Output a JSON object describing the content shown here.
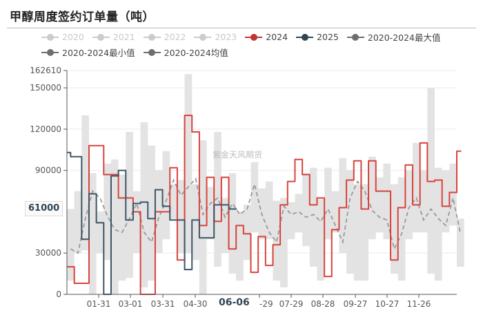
{
  "title": "甲醇周度签约订单量（吨）",
  "watermark": "紫金天风期货",
  "legend": {
    "row1": [
      {
        "label": "2020",
        "color": "#cccccc",
        "active": false
      },
      {
        "label": "2021",
        "color": "#cccccc",
        "active": false
      },
      {
        "label": "2022",
        "color": "#cccccc",
        "active": false
      },
      {
        "label": "2023",
        "color": "#cccccc",
        "active": false
      },
      {
        "label": "2024",
        "color": "#c23531",
        "active": true
      },
      {
        "label": "2025",
        "color": "#2f4554",
        "active": true
      },
      {
        "label": "2020-2024最大值",
        "color": "#6e6e6e",
        "active": true
      }
    ],
    "row2": [
      {
        "label": "2020-2024最小值",
        "color": "#6e6e6e",
        "active": true
      },
      {
        "label": "2020-2024均值",
        "color": "#6e6e6e",
        "active": true
      }
    ]
  },
  "axis_pointer": {
    "y_value": "61000",
    "x_value": "06-06"
  },
  "colors": {
    "y2024": "#d9423c",
    "y2025": "#3d5566",
    "band": "#e3e3e3",
    "avg": "#999999",
    "grid": "#ebebeb",
    "axis": "#555555"
  },
  "chart_data": {
    "type": "line",
    "title": "甲醇周度签约订单量（吨）",
    "xlabel": "",
    "ylabel": "吨",
    "ylim": [
      0,
      162610
    ],
    "y_ticks": [
      0,
      30000,
      90000,
      120000,
      150000,
      162610
    ],
    "y_pointer_label": 61000,
    "x_tick_labels": [
      "01-31",
      "03-01",
      "03-31",
      "04-30",
      "06-29",
      "07-29",
      "08-28",
      "09-27",
      "10-27",
      "11-26"
    ],
    "x_pointer_label": "06-06",
    "grid": true,
    "legend_position": "top",
    "x_range_weeks": [
      0,
      53
    ],
    "series": [
      {
        "name": "2024",
        "type": "step",
        "x": [
          0,
          1,
          3,
          5,
          7,
          9,
          10,
          12,
          14,
          15,
          16,
          17,
          18,
          19,
          20,
          21,
          22,
          23,
          24,
          25,
          26,
          27,
          28,
          29,
          30,
          31,
          32,
          33,
          34,
          35,
          36,
          37,
          38,
          39,
          40,
          41,
          42,
          43,
          44,
          45,
          46,
          47,
          48,
          49,
          50,
          51,
          52,
          53
        ],
        "values": [
          20000,
          8000,
          108000,
          87000,
          70000,
          60000,
          0,
          60000,
          92000,
          25000,
          130000,
          118000,
          50000,
          85000,
          53000,
          85000,
          33000,
          50000,
          44000,
          16000,
          42000,
          21000,
          36000,
          65000,
          82000,
          98000,
          87000,
          65000,
          70000,
          13000,
          47000,
          63000,
          83000,
          97000,
          62000,
          97000,
          75000,
          75000,
          25000,
          63000,
          94000,
          65000,
          110000,
          82000,
          83000,
          64000,
          74000,
          104000
        ]
      },
      {
        "name": "2025",
        "type": "step",
        "x": [
          0,
          0.5,
          1.5,
          2,
          3,
          4,
          5,
          5.5,
          6,
          7,
          8,
          9,
          10,
          11,
          12,
          13,
          14,
          15,
          16,
          17,
          18,
          19,
          20,
          21,
          22,
          22.5
        ],
        "values": [
          103000,
          100000,
          100000,
          40000,
          73000,
          52000,
          0,
          0,
          86000,
          90000,
          54000,
          66000,
          67000,
          55000,
          76000,
          64000,
          54000,
          54000,
          18000,
          54000,
          41000,
          41000,
          65000,
          65000,
          62000,
          62000
        ]
      },
      {
        "name": "2020-2024均值",
        "type": "line",
        "style": "dashed",
        "x": [
          0,
          1,
          2,
          3,
          4,
          5,
          6,
          7,
          8,
          9,
          10,
          11,
          12,
          13,
          14,
          15,
          16,
          17,
          18,
          19,
          20,
          21,
          22,
          23,
          24,
          25,
          26,
          27,
          28,
          29,
          30,
          31,
          32,
          33,
          34,
          35,
          36,
          37,
          38,
          39,
          40,
          41,
          42,
          43,
          44,
          45,
          46,
          47,
          48,
          49,
          50,
          51,
          52,
          53
        ],
        "values": [
          33000,
          30000,
          55000,
          75000,
          70000,
          57000,
          47000,
          45000,
          55000,
          66000,
          45000,
          38000,
          56000,
          68000,
          83000,
          72000,
          78000,
          84000,
          58000,
          66000,
          70000,
          56000,
          66000,
          58000,
          62000,
          80000,
          58000,
          45000,
          38000,
          64000,
          58000,
          60000,
          56000,
          58000,
          53000,
          62000,
          50000,
          38000,
          70000,
          82000,
          75000,
          61000,
          56000,
          54000,
          33000,
          44000,
          63000,
          70000,
          54000,
          62000,
          55000,
          50000,
          70000,
          44000
        ]
      },
      {
        "name": "2020-2024最大值",
        "type": "area_upper",
        "values": [
          62000,
          75000,
          130000,
          88000,
          60000,
          95000,
          98000,
          87000,
          118000,
          75000,
          125000,
          108000,
          90000,
          104000,
          80000,
          83000,
          160000,
          80000,
          112000,
          78000,
          118000,
          70000,
          88000,
          60000,
          65000,
          96000,
          77000,
          82000,
          68000,
          70000,
          67000,
          73000,
          88000,
          92000,
          69000,
          92000,
          75000,
          99000,
          90000,
          80000,
          80000,
          100000,
          85000,
          95000,
          80000,
          85000,
          90000,
          110000,
          90000,
          150000,
          92000,
          90000,
          95000,
          55000
        ]
      },
      {
        "name": "2020-2024最小值",
        "type": "area_lower",
        "values": [
          10000,
          30000,
          32000,
          0,
          30000,
          25000,
          0,
          10000,
          12000,
          30000,
          5000,
          10000,
          30000,
          40000,
          55000,
          30000,
          30000,
          25000,
          0,
          40000,
          20000,
          30000,
          15000,
          10000,
          25000,
          45000,
          40000,
          40000,
          10000,
          5000,
          40000,
          45000,
          35000,
          20000,
          10000,
          40000,
          45000,
          30000,
          15000,
          10000,
          10000,
          40000,
          45000,
          40000,
          15000,
          10000,
          40000,
          45000,
          45000,
          15000,
          10000,
          45000,
          50000,
          20000
        ]
      }
    ]
  }
}
